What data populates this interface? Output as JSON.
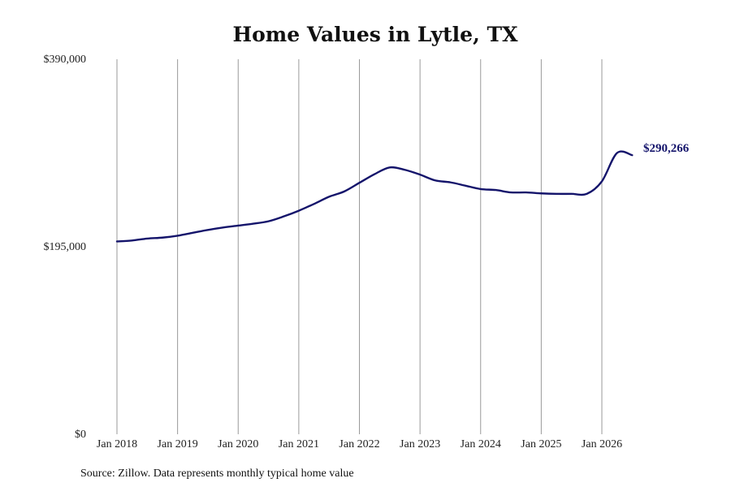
{
  "chart_data": {
    "type": "line",
    "title": "Home Values in Lytle, TX",
    "xlabel": "",
    "ylabel": "",
    "ylim": [
      0,
      390000
    ],
    "y_ticks": [
      {
        "value": 0,
        "label": "$0"
      },
      {
        "value": 195000,
        "label": "$195,000"
      },
      {
        "value": 390000,
        "label": "$390,000"
      }
    ],
    "x_ticks": [
      {
        "value": "2018-01",
        "label": "Jan 2018"
      },
      {
        "value": "2019-01",
        "label": "Jan 2019"
      },
      {
        "value": "2020-01",
        "label": "Jan 2020"
      },
      {
        "value": "2021-01",
        "label": "Jan 2021"
      },
      {
        "value": "2022-01",
        "label": "Jan 2022"
      },
      {
        "value": "2023-01",
        "label": "Jan 2023"
      },
      {
        "value": "2024-01",
        "label": "Jan 2024"
      },
      {
        "value": "2025-01",
        "label": "Jan 2025"
      },
      {
        "value": "2026-01",
        "label": "Jan 2026"
      }
    ],
    "vertical_grid": true,
    "line_color": "#14146b",
    "series": [
      {
        "x": [
          "2018-01",
          "2018-04",
          "2018-07",
          "2018-10",
          "2019-01",
          "2019-04",
          "2019-07",
          "2019-10",
          "2020-01",
          "2020-04",
          "2020-07",
          "2020-10",
          "2021-01",
          "2021-04",
          "2021-07",
          "2021-10",
          "2022-01",
          "2022-04",
          "2022-07",
          "2022-10",
          "2023-01",
          "2023-04",
          "2023-07",
          "2023-10",
          "2024-01",
          "2024-04",
          "2024-07",
          "2024-10",
          "2025-01",
          "2025-04",
          "2025-07",
          "2025-10",
          "2026-01",
          "2026-04",
          "2026-07"
        ],
        "values": [
          200500,
          201500,
          203500,
          204500,
          206500,
          209500,
          212500,
          215000,
          217000,
          219000,
          221500,
          226500,
          232500,
          239500,
          247000,
          252500,
          261500,
          270500,
          277500,
          275000,
          270000,
          264000,
          262000,
          258500,
          255000,
          254000,
          251500,
          251500,
          250500,
          250000,
          250000,
          250000,
          263000,
          292500,
          290266
        ]
      }
    ],
    "end_label": "$290,266",
    "source": "Source: Zillow. Data represents monthly typical home value"
  }
}
